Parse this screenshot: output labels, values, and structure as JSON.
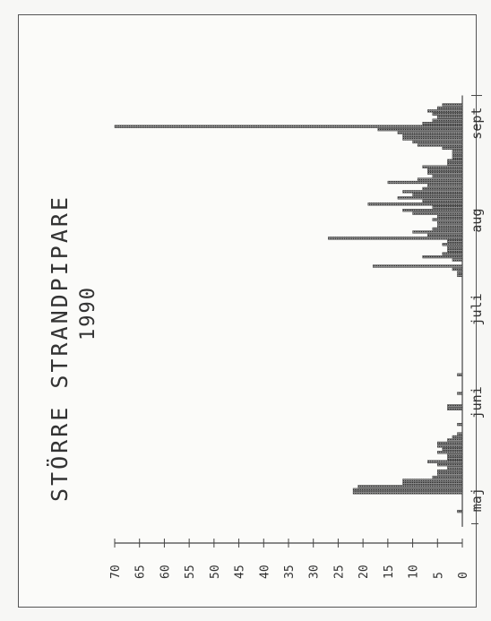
{
  "chart_data": {
    "type": "bar",
    "title": "STÖRRE STRANDPIPARE",
    "subtitle": "1990",
    "orientation": "rotated",
    "xlabel": "",
    "ylabel": "",
    "ylim": [
      0,
      70
    ],
    "yticks": [
      "0",
      "5",
      "10",
      "15",
      "20",
      "25",
      "30",
      "35",
      "40",
      "45",
      "50",
      "55",
      "60",
      "65",
      "70"
    ],
    "month_labels": [
      {
        "label": "maj",
        "day": 8
      },
      {
        "label": "juni",
        "day": 38
      },
      {
        "label": "juli",
        "day": 68
      },
      {
        "label": "aug",
        "day": 98
      },
      {
        "label": "sept",
        "day": 128
      }
    ],
    "x_range": [
      0,
      136
    ],
    "series": [
      {
        "x": [
          3,
          9,
          10,
          11,
          12,
          13,
          14,
          15,
          16,
          17,
          18,
          19,
          20,
          21,
          22,
          23,
          24,
          25,
          26,
          27,
          28,
          31,
          36,
          37,
          41,
          47,
          79,
          80,
          81,
          82,
          84,
          85,
          86,
          87,
          88,
          89,
          90,
          91,
          92,
          93,
          94,
          95,
          96,
          97,
          98,
          99,
          100,
          101,
          102,
          103,
          104,
          105,
          106,
          107,
          108,
          109,
          110,
          111,
          112,
          113,
          114,
          115,
          116,
          117,
          118,
          119,
          120,
          121,
          122,
          123,
          124,
          125,
          126,
          127,
          128,
          129,
          130,
          131,
          132,
          133,
          134
        ],
        "values": [
          1,
          22,
          22,
          21,
          12,
          12,
          6,
          5,
          5,
          3,
          5,
          7,
          3,
          3,
          5,
          4,
          5,
          5,
          3,
          2,
          1,
          1,
          3,
          3,
          1,
          1,
          1,
          1,
          2,
          18,
          2,
          8,
          4,
          3,
          3,
          4,
          3,
          27,
          7,
          10,
          6,
          5,
          5,
          6,
          5,
          10,
          12,
          6,
          19,
          8,
          13,
          10,
          12,
          8,
          7,
          15,
          9,
          6,
          7,
          7,
          8,
          3,
          3,
          2,
          2,
          2,
          4,
          9,
          10,
          12,
          12,
          13,
          17,
          70,
          8,
          6,
          5,
          6,
          7,
          5,
          4
        ]
      }
    ]
  }
}
